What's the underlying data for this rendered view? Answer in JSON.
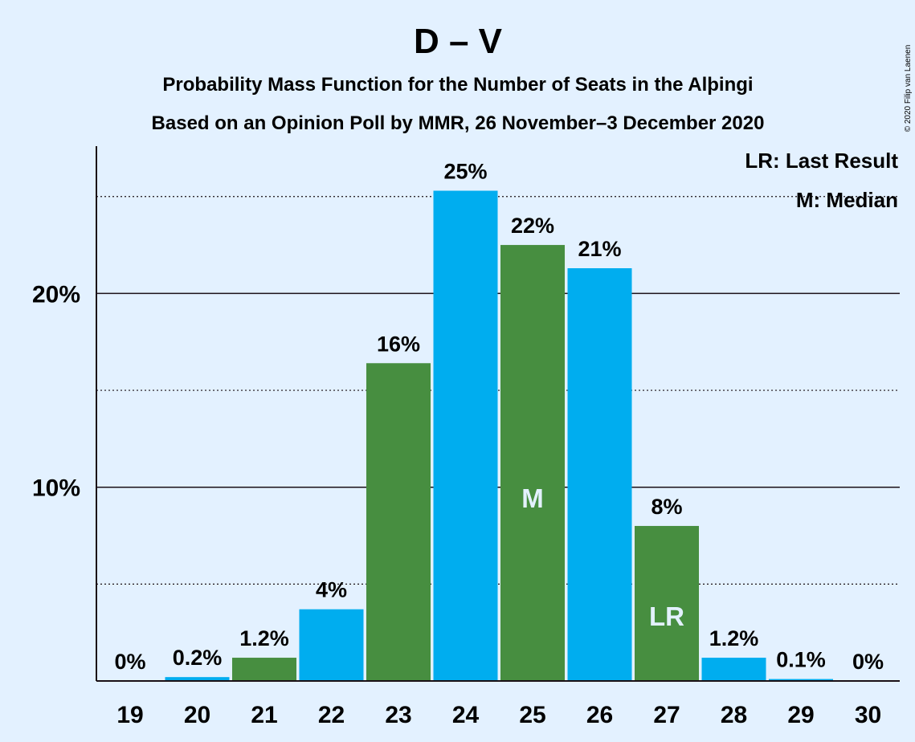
{
  "chart_data": {
    "type": "bar",
    "title": "D – V",
    "subtitle_lines": [
      "Probability Mass Function for the Number of Seats in the Alþingi",
      "Based on an Opinion Poll by MMR, 26 November–3 December 2020"
    ],
    "categories": [
      "19",
      "20",
      "21",
      "22",
      "23",
      "24",
      "25",
      "26",
      "27",
      "28",
      "29",
      "30"
    ],
    "values": [
      0,
      0.2,
      1.2,
      3.7,
      16.4,
      25.3,
      22.5,
      21.3,
      8.0,
      1.2,
      0.1,
      0
    ],
    "value_labels": [
      "0%",
      "0.2%",
      "1.2%",
      "4%",
      "16%",
      "25%",
      "22%",
      "21%",
      "8%",
      "1.2%",
      "0.1%",
      "0%"
    ],
    "colors": [
      "#00adef",
      "#00adef",
      "#478e40",
      "#00adef",
      "#478e40",
      "#00adef",
      "#478e40",
      "#00adef",
      "#478e40",
      "#00adef",
      "#00adef",
      "#00adef"
    ],
    "ylim": [
      0,
      27.6
    ],
    "yticks": [
      10,
      20
    ],
    "ytick_labels": [
      "10%",
      "20%"
    ],
    "minor_gridlines": [
      5,
      15,
      25
    ],
    "median_seat": "25",
    "median_marker": "M",
    "last_result_seat": "27",
    "last_result_marker": "LR",
    "legend": [
      "LR: Last Result",
      "M: Median"
    ],
    "legend_position": "top-right",
    "copyright": "© 2020 Filip van Laenen"
  }
}
